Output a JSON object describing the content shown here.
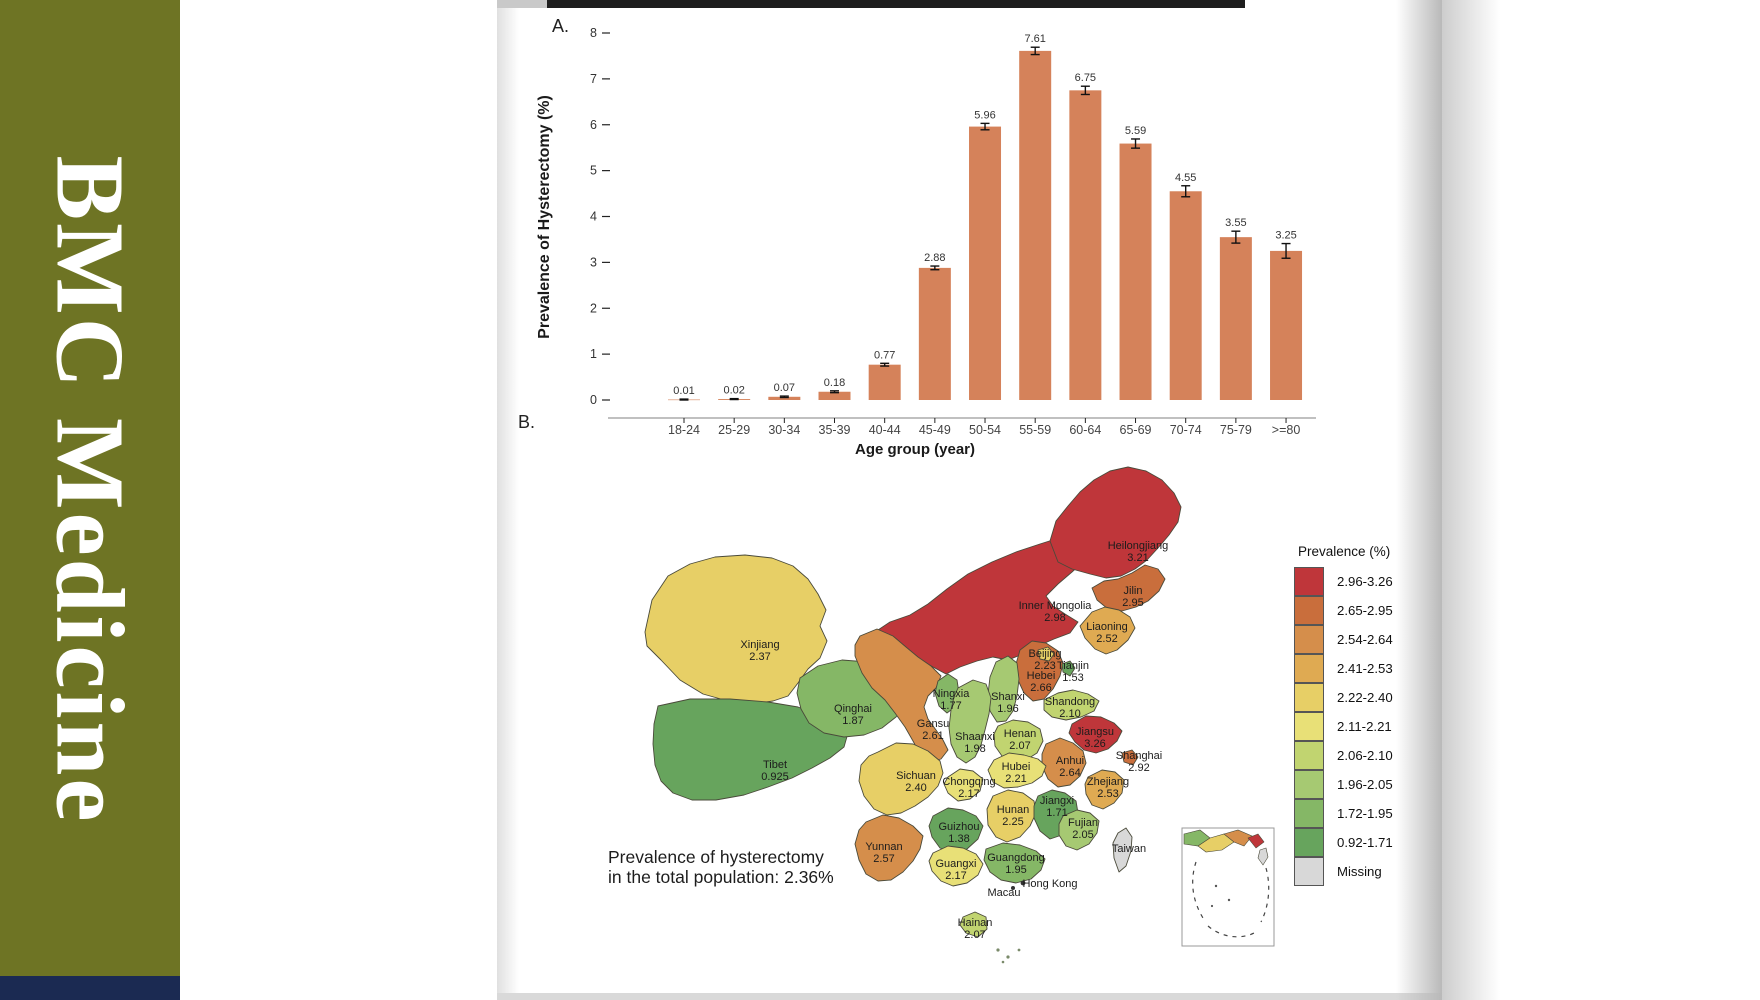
{
  "banner": {
    "title": "BMC Medicine",
    "bg_color": "#6e7424",
    "footer_color": "#1b2a52"
  },
  "page": {
    "panel_a": "A.",
    "panel_b": "B."
  },
  "chart_data": [
    {
      "type": "bar",
      "panel": "A",
      "categories": [
        "18-24",
        "25-29",
        "30-34",
        "35-39",
        "40-44",
        "45-49",
        "50-54",
        "55-59",
        "60-64",
        "65-69",
        "70-74",
        "75-79",
        ">=80"
      ],
      "values": [
        0.01,
        0.02,
        0.07,
        0.18,
        0.77,
        2.88,
        5.96,
        7.61,
        6.75,
        5.59,
        4.55,
        3.55,
        3.25
      ],
      "labels": [
        "0.01",
        "0.02",
        "0.07",
        "0.18",
        "0.77",
        "2.88",
        "5.96",
        "7.61",
        "6.75",
        "5.59",
        "4.55",
        "3.55",
        "3.25"
      ],
      "errors": [
        0.01,
        0.01,
        0.015,
        0.02,
        0.03,
        0.04,
        0.07,
        0.08,
        0.09,
        0.1,
        0.12,
        0.13,
        0.16
      ],
      "xlabel": "Age group (year)",
      "ylabel": "Prevalence of Hysterectomy (%)",
      "yticks": [
        0,
        1,
        2,
        3,
        4,
        5,
        6,
        7,
        8
      ],
      "ylim": [
        0,
        8
      ],
      "grid": false,
      "bar_color": "#d5825a",
      "error_bar_color": "#111111"
    },
    {
      "type": "choropleth",
      "panel": "B",
      "legend_title": "Prevalence (%)",
      "legend_position": "right",
      "legend": [
        {
          "label": "2.96-3.26",
          "color": "#bf363a"
        },
        {
          "label": "2.65-2.95",
          "color": "#c96e3c"
        },
        {
          "label": "2.54-2.64",
          "color": "#d58e4b"
        },
        {
          "label": "2.41-2.53",
          "color": "#dfaa52"
        },
        {
          "label": "2.22-2.40",
          "color": "#e7cf66"
        },
        {
          "label": "2.11-2.21",
          "color": "#e8e077"
        },
        {
          "label": "2.06-2.10",
          "color": "#c1d470"
        },
        {
          "label": "1.96-2.05",
          "color": "#a6c972"
        },
        {
          "label": "1.72-1.95",
          "color": "#85b766"
        },
        {
          "label": "0.92-1.71",
          "color": "#67a45d"
        },
        {
          "label": "Missing",
          "color": "#d8d8d8"
        }
      ],
      "annotation": [
        "Prevalence of hysterectomy",
        "in the total population: 2.36%"
      ],
      "regions": {
        "xinjiang": {
          "name": "Xinjiang",
          "value": "2.37",
          "bin": 4
        },
        "tibet": {
          "name": "Tibet",
          "value": "0.925",
          "bin": 9
        },
        "qinghai": {
          "name": "Qinghai",
          "value": "1.87",
          "bin": 8
        },
        "gansu": {
          "name": "Gansu",
          "value": "2.61",
          "bin": 2
        },
        "innermongolia": {
          "name": "Inner Mongolia",
          "value": "2.98",
          "bin": 0
        },
        "heilongjiang": {
          "name": "Heilongjiang",
          "value": "3.21",
          "bin": 0
        },
        "jilin": {
          "name": "Jilin",
          "value": "2.95",
          "bin": 1
        },
        "liaoning": {
          "name": "Liaoning",
          "value": "2.52",
          "bin": 3
        },
        "beijing": {
          "name": "Beijing",
          "value": "2.23",
          "bin": 4
        },
        "tianjin": {
          "name": "Tianjin",
          "value": "1.53",
          "bin": 9
        },
        "hebei": {
          "name": "Hebei",
          "value": "2.66",
          "bin": 1
        },
        "shanxi": {
          "name": "Shanxi",
          "value": "1.96",
          "bin": 7
        },
        "shandong": {
          "name": "Shandong",
          "value": "2.10",
          "bin": 6
        },
        "ningxia": {
          "name": "Ningxia",
          "value": "1.77",
          "bin": 8
        },
        "shaanxi": {
          "name": "Shaanxi",
          "value": "1.98",
          "bin": 7
        },
        "henan": {
          "name": "Henan",
          "value": "2.07",
          "bin": 6
        },
        "jiangsu": {
          "name": "Jiangsu",
          "value": "3.26",
          "bin": 0
        },
        "shanghai": {
          "name": "Shanghai",
          "value": "2.92",
          "bin": 1
        },
        "anhui": {
          "name": "Anhui",
          "value": "2.64",
          "bin": 2
        },
        "zhejiang": {
          "name": "Zhejiang",
          "value": "2.53",
          "bin": 3
        },
        "hubei": {
          "name": "Hubei",
          "value": "2.21",
          "bin": 5
        },
        "chongqing": {
          "name": "Chongqing",
          "value": "2.17",
          "bin": 5
        },
        "sichuan": {
          "name": "Sichuan",
          "value": "2.40",
          "bin": 4
        },
        "hunan": {
          "name": "Hunan",
          "value": "2.25",
          "bin": 4
        },
        "jiangxi": {
          "name": "Jiangxi",
          "value": "1.71",
          "bin": 9
        },
        "guizhou": {
          "name": "Guizhou",
          "value": "1.38",
          "bin": 9
        },
        "fujian": {
          "name": "Fujian",
          "value": "2.05",
          "bin": 7
        },
        "yunnan": {
          "name": "Yunnan",
          "value": "2.57",
          "bin": 2
        },
        "guangxi": {
          "name": "Guangxi",
          "value": "2.17",
          "bin": 5
        },
        "guangdong": {
          "name": "Guangdong",
          "value": "1.95",
          "bin": 8
        },
        "hainan": {
          "name": "Hainan",
          "value": "2.07",
          "bin": 6
        },
        "taiwan": {
          "name": "Taiwan",
          "value": "",
          "bin": 10
        },
        "hongkong": {
          "name": "Hong Kong",
          "value": "",
          "bin": -1
        },
        "macau": {
          "name": "Macau",
          "value": "",
          "bin": -1
        }
      }
    }
  ]
}
